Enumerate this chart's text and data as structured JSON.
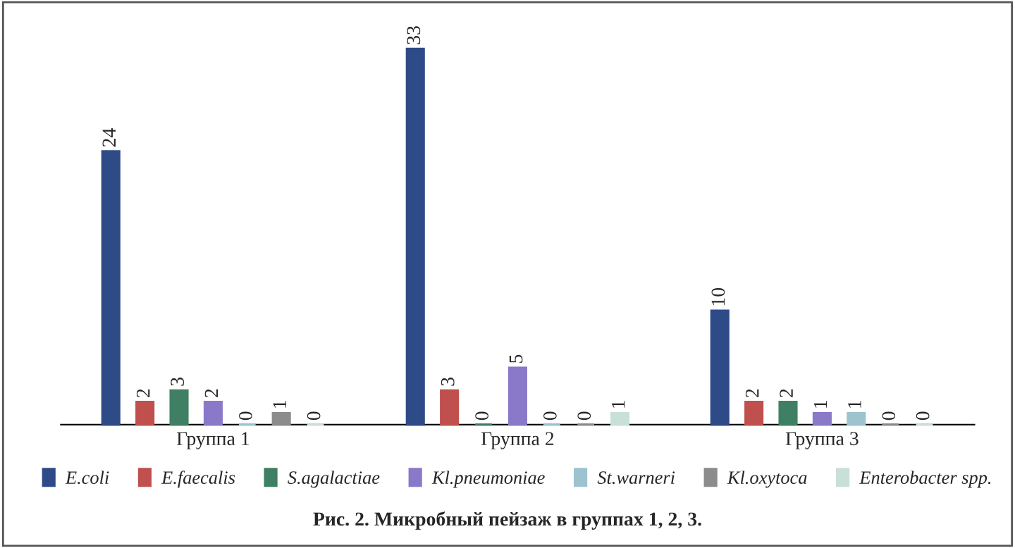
{
  "chart_data": {
    "type": "bar",
    "title": "Рис. 2. Микробный пейзаж в группах 1, 2, 3.",
    "categories": [
      "Группа 1",
      "Группа 2",
      "Группа 3"
    ],
    "series": [
      {
        "name": "E.coli",
        "color": "#2e4a87",
        "values": [
          24,
          33,
          10
        ]
      },
      {
        "name": "E.faecalis",
        "color": "#c0504d",
        "values": [
          2,
          3,
          2
        ]
      },
      {
        "name": "S.agalactiae",
        "color": "#3f7f64",
        "values": [
          3,
          0,
          2
        ]
      },
      {
        "name": "Kl.pneumoniae",
        "color": "#8a78c8",
        "values": [
          2,
          5,
          1
        ]
      },
      {
        "name": "St.warneri",
        "color": "#9cc3cf",
        "values": [
          0,
          0,
          1
        ]
      },
      {
        "name": "Kl.oxytoca",
        "color": "#8c8c8c",
        "values": [
          1,
          0,
          0
        ]
      },
      {
        "name": "Enterobacter spp.",
        "color": "#c8e0d8",
        "values": [
          0,
          1,
          0
        ]
      }
    ],
    "data_labels": true,
    "legend": "bottom",
    "grid": false
  }
}
